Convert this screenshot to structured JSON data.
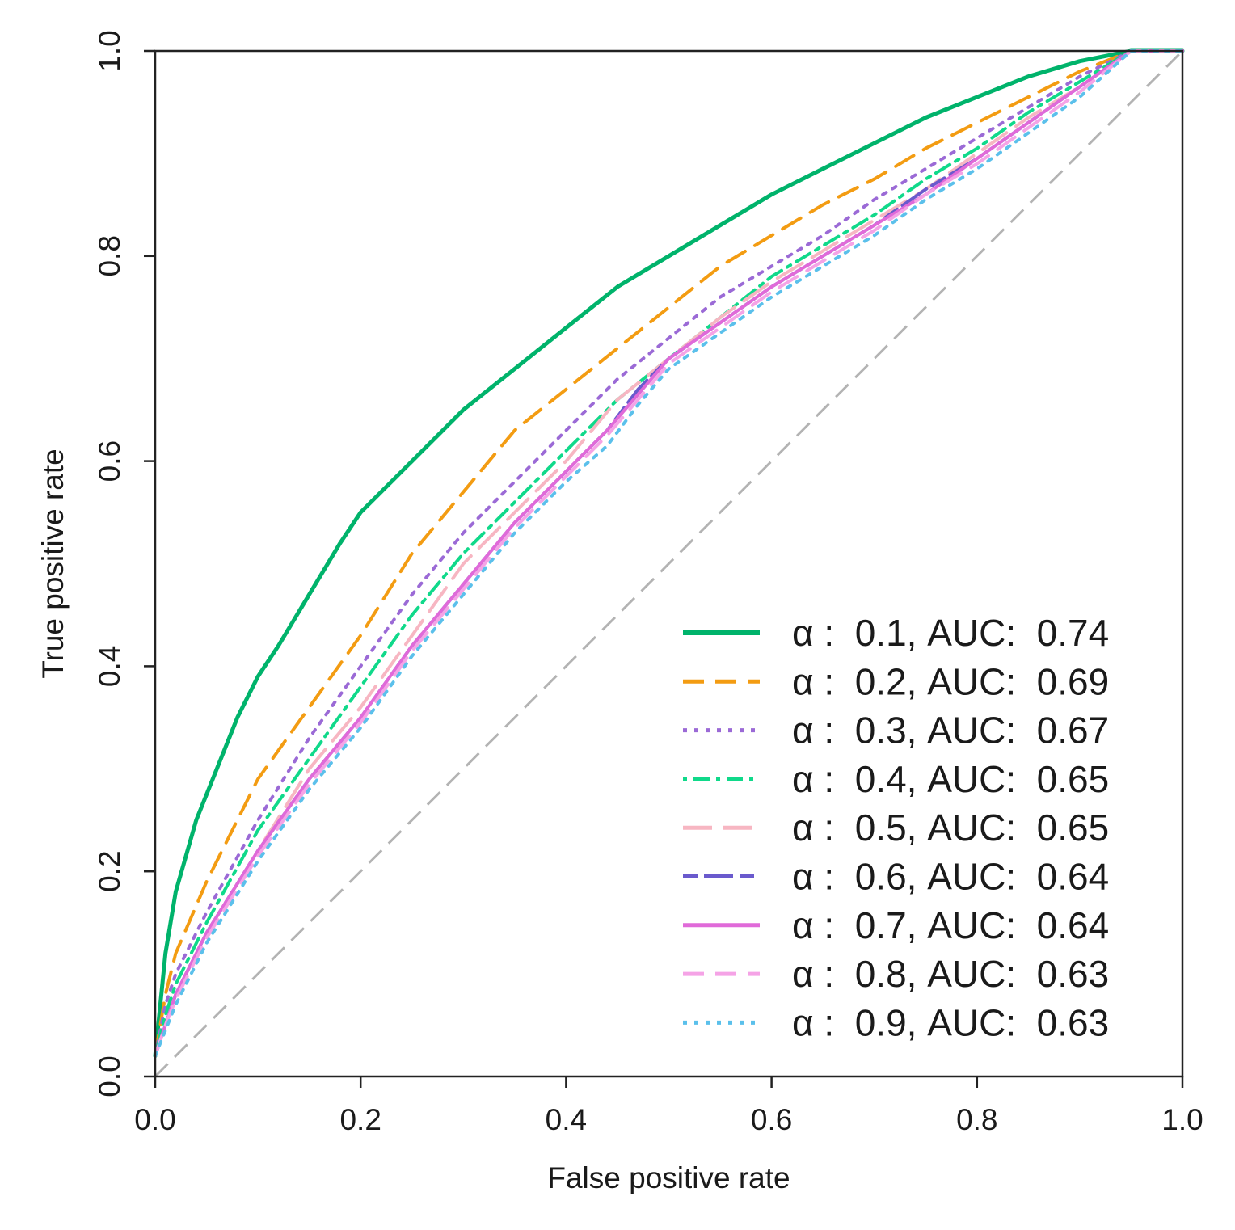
{
  "chart_data": {
    "type": "line",
    "title": "",
    "xlabel": "False positive rate",
    "ylabel": "True positive rate",
    "xlim": [
      0,
      1
    ],
    "ylim": [
      0,
      1
    ],
    "grid": false,
    "legend_position": "bottom-right",
    "x_ticks": [
      "0.0",
      "0.2",
      "0.4",
      "0.6",
      "0.8",
      "1.0"
    ],
    "y_ticks": [
      "0.0",
      "0.2",
      "0.4",
      "0.6",
      "0.8",
      "1.0"
    ],
    "reference_line": {
      "name": "chance",
      "color": "#b3b3b3",
      "dash": "dashed",
      "x": [
        0,
        1
      ],
      "y": [
        0,
        1
      ]
    },
    "series": [
      {
        "name": "α :  0.1, AUC:  0.74",
        "alpha": 0.1,
        "auc": 0.74,
        "color": "#00b36b",
        "dash": "solid",
        "x": [
          0,
          0.01,
          0.02,
          0.04,
          0.06,
          0.08,
          0.1,
          0.12,
          0.15,
          0.18,
          0.2,
          0.25,
          0.3,
          0.35,
          0.4,
          0.45,
          0.5,
          0.55,
          0.6,
          0.65,
          0.7,
          0.75,
          0.8,
          0.85,
          0.9,
          0.95,
          1.0
        ],
        "y": [
          0.02,
          0.12,
          0.18,
          0.25,
          0.3,
          0.35,
          0.39,
          0.42,
          0.47,
          0.52,
          0.55,
          0.6,
          0.65,
          0.69,
          0.73,
          0.77,
          0.8,
          0.83,
          0.86,
          0.885,
          0.91,
          0.935,
          0.955,
          0.975,
          0.99,
          1.0,
          1.0
        ]
      },
      {
        "name": "α :  0.2, AUC:  0.69",
        "alpha": 0.2,
        "auc": 0.69,
        "color": "#f39c12",
        "dash": "dashed",
        "x": [
          0,
          0.01,
          0.02,
          0.05,
          0.1,
          0.15,
          0.2,
          0.25,
          0.3,
          0.35,
          0.4,
          0.45,
          0.5,
          0.55,
          0.6,
          0.65,
          0.7,
          0.75,
          0.8,
          0.85,
          0.9,
          0.95,
          1.0
        ],
        "y": [
          0.02,
          0.08,
          0.12,
          0.19,
          0.29,
          0.36,
          0.43,
          0.51,
          0.57,
          0.63,
          0.67,
          0.71,
          0.75,
          0.79,
          0.82,
          0.85,
          0.875,
          0.905,
          0.93,
          0.955,
          0.98,
          1.0,
          1.0
        ]
      },
      {
        "name": "α :  0.3, AUC:  0.67",
        "alpha": 0.3,
        "auc": 0.67,
        "color": "#9b6ad6",
        "dash": "dotted",
        "x": [
          0,
          0.01,
          0.02,
          0.05,
          0.1,
          0.15,
          0.2,
          0.25,
          0.3,
          0.35,
          0.4,
          0.45,
          0.5,
          0.55,
          0.6,
          0.65,
          0.7,
          0.75,
          0.8,
          0.85,
          0.9,
          0.95,
          1.0
        ],
        "y": [
          0.02,
          0.07,
          0.1,
          0.16,
          0.25,
          0.33,
          0.4,
          0.47,
          0.53,
          0.58,
          0.63,
          0.68,
          0.72,
          0.76,
          0.79,
          0.82,
          0.855,
          0.885,
          0.915,
          0.945,
          0.975,
          1.0,
          1.0
        ]
      },
      {
        "name": "α :  0.4, AUC:  0.65",
        "alpha": 0.4,
        "auc": 0.65,
        "color": "#10d98a",
        "dash": "dotdash",
        "x": [
          0,
          0.01,
          0.02,
          0.05,
          0.1,
          0.15,
          0.2,
          0.25,
          0.3,
          0.35,
          0.4,
          0.45,
          0.5,
          0.55,
          0.6,
          0.65,
          0.7,
          0.75,
          0.8,
          0.85,
          0.9,
          0.95,
          1.0
        ],
        "y": [
          0.02,
          0.06,
          0.09,
          0.15,
          0.24,
          0.31,
          0.38,
          0.45,
          0.51,
          0.56,
          0.61,
          0.66,
          0.7,
          0.74,
          0.78,
          0.81,
          0.84,
          0.875,
          0.905,
          0.94,
          0.97,
          1.0,
          1.0
        ]
      },
      {
        "name": "α :  0.5, AUC:  0.65",
        "alpha": 0.5,
        "auc": 0.65,
        "color": "#f7b6c2",
        "dash": "longdash",
        "x": [
          0,
          0.01,
          0.02,
          0.05,
          0.1,
          0.15,
          0.2,
          0.25,
          0.3,
          0.35,
          0.4,
          0.45,
          0.5,
          0.55,
          0.6,
          0.65,
          0.7,
          0.75,
          0.8,
          0.85,
          0.9,
          0.95,
          1.0
        ],
        "y": [
          0.02,
          0.05,
          0.08,
          0.14,
          0.22,
          0.3,
          0.36,
          0.43,
          0.5,
          0.55,
          0.6,
          0.66,
          0.7,
          0.74,
          0.775,
          0.805,
          0.835,
          0.865,
          0.9,
          0.935,
          0.965,
          1.0,
          1.0
        ]
      },
      {
        "name": "α :  0.6, AUC:  0.64",
        "alpha": 0.6,
        "auc": 0.64,
        "color": "#6a5acd",
        "dash": "twodash",
        "x": [
          0,
          0.01,
          0.02,
          0.05,
          0.1,
          0.15,
          0.2,
          0.25,
          0.3,
          0.35,
          0.4,
          0.44,
          0.47,
          0.5,
          0.55,
          0.6,
          0.65,
          0.7,
          0.75,
          0.8,
          0.85,
          0.9,
          0.95,
          1.0
        ],
        "y": [
          0.02,
          0.05,
          0.08,
          0.14,
          0.22,
          0.29,
          0.35,
          0.42,
          0.48,
          0.54,
          0.59,
          0.63,
          0.67,
          0.7,
          0.735,
          0.77,
          0.8,
          0.83,
          0.865,
          0.895,
          0.93,
          0.965,
          1.0,
          1.0
        ]
      },
      {
        "name": "α :  0.7, AUC:  0.64",
        "alpha": 0.7,
        "auc": 0.64,
        "color": "#e06ad9",
        "dash": "solid",
        "x": [
          0,
          0.01,
          0.02,
          0.05,
          0.1,
          0.15,
          0.2,
          0.25,
          0.3,
          0.35,
          0.4,
          0.44,
          0.47,
          0.5,
          0.55,
          0.6,
          0.65,
          0.7,
          0.75,
          0.8,
          0.85,
          0.9,
          0.95,
          1.0
        ],
        "y": [
          0.02,
          0.05,
          0.08,
          0.14,
          0.22,
          0.29,
          0.35,
          0.42,
          0.48,
          0.54,
          0.59,
          0.63,
          0.665,
          0.7,
          0.735,
          0.77,
          0.8,
          0.83,
          0.86,
          0.895,
          0.93,
          0.965,
          1.0,
          1.0
        ]
      },
      {
        "name": "α :  0.8, AUC:  0.63",
        "alpha": 0.8,
        "auc": 0.63,
        "color": "#f5a3e6",
        "dash": "dashed",
        "x": [
          0,
          0.01,
          0.02,
          0.05,
          0.1,
          0.15,
          0.2,
          0.25,
          0.3,
          0.35,
          0.4,
          0.44,
          0.47,
          0.5,
          0.55,
          0.6,
          0.65,
          0.7,
          0.75,
          0.8,
          0.85,
          0.9,
          0.95,
          1.0
        ],
        "y": [
          0.02,
          0.05,
          0.075,
          0.135,
          0.215,
          0.285,
          0.345,
          0.415,
          0.475,
          0.535,
          0.585,
          0.625,
          0.66,
          0.695,
          0.73,
          0.765,
          0.795,
          0.825,
          0.86,
          0.89,
          0.925,
          0.96,
          1.0,
          1.0
        ]
      },
      {
        "name": "α :  0.9, AUC:  0.63",
        "alpha": 0.9,
        "auc": 0.63,
        "color": "#5bc0eb",
        "dash": "dotted",
        "x": [
          0,
          0.01,
          0.02,
          0.05,
          0.1,
          0.15,
          0.2,
          0.25,
          0.3,
          0.35,
          0.4,
          0.44,
          0.47,
          0.5,
          0.55,
          0.6,
          0.65,
          0.7,
          0.75,
          0.8,
          0.85,
          0.9,
          0.95,
          1.0
        ],
        "y": [
          0.02,
          0.045,
          0.07,
          0.13,
          0.21,
          0.28,
          0.34,
          0.41,
          0.47,
          0.53,
          0.58,
          0.615,
          0.655,
          0.69,
          0.725,
          0.76,
          0.79,
          0.82,
          0.855,
          0.885,
          0.92,
          0.955,
          1.0,
          1.0
        ]
      }
    ]
  }
}
